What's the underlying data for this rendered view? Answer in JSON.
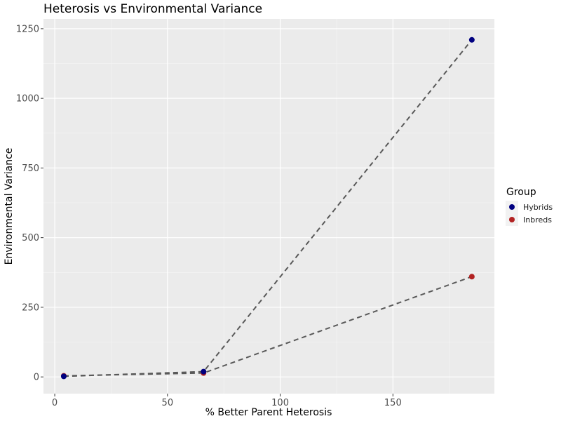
{
  "chart_data": {
    "type": "scatter",
    "title": "Heterosis vs Environmental Variance",
    "xlabel": "% Better Parent Heterosis",
    "ylabel": "Environmental Variance",
    "xlim": [
      -5,
      195
    ],
    "ylim": [
      -60,
      1285
    ],
    "x_ticks": [
      0,
      50,
      100,
      150
    ],
    "y_ticks": [
      0,
      250,
      500,
      750,
      1000,
      1250
    ],
    "x_tick_labels": [
      "0",
      "50",
      "100",
      "150"
    ],
    "y_tick_labels": [
      "0",
      "250",
      "500",
      "750",
      "1000",
      "1250"
    ],
    "grid": true,
    "legend": {
      "title": "Group",
      "position": "right"
    },
    "line_style": "dashed",
    "line_color": "#595959",
    "series": [
      {
        "name": "Hybrids",
        "color": "#000080",
        "points": [
          {
            "x": 4,
            "y": 2
          },
          {
            "x": 66,
            "y": 19
          },
          {
            "x": 185,
            "y": 1210
          }
        ]
      },
      {
        "name": "Inbreds",
        "color": "#B22222",
        "points": [
          {
            "x": 4,
            "y": 4
          },
          {
            "x": 66,
            "y": 14
          },
          {
            "x": 185,
            "y": 360
          }
        ]
      }
    ]
  }
}
